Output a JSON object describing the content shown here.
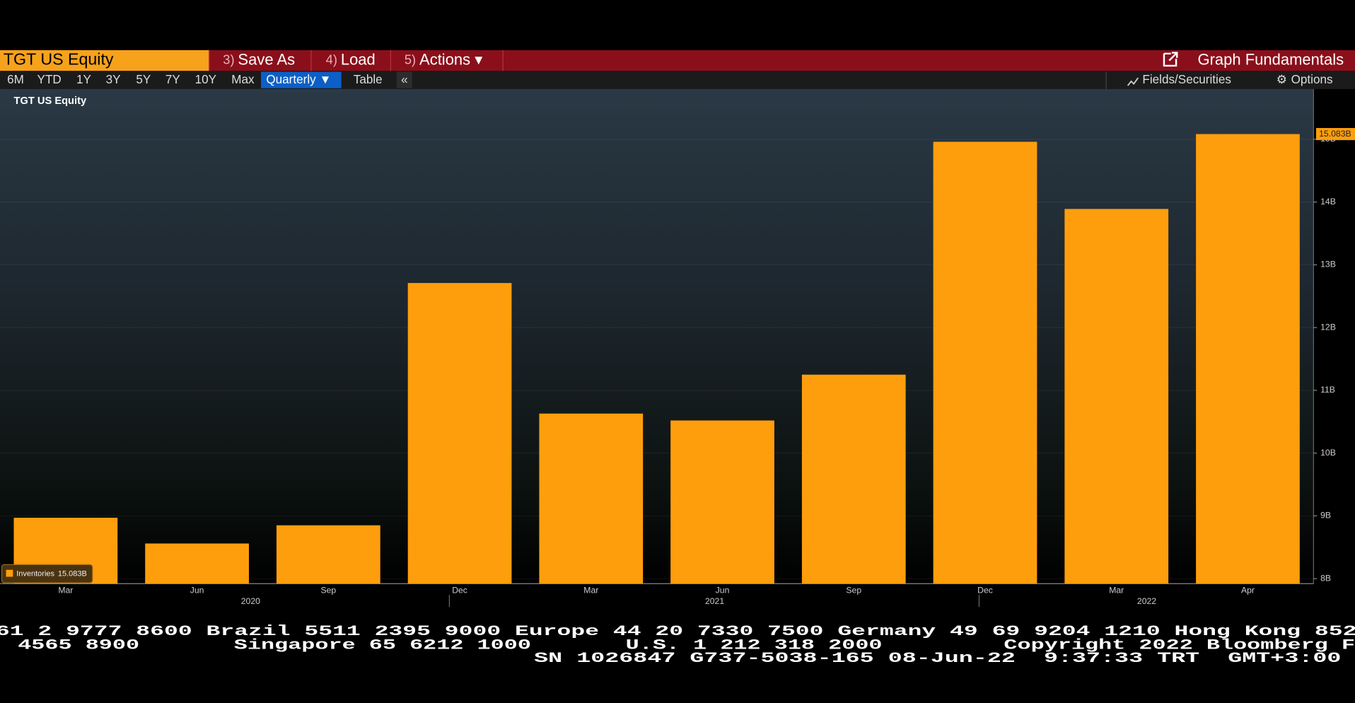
{
  "toolbar": {
    "security": "TGT US Equity",
    "menu": [
      {
        "key": "3)",
        "label": "Save As"
      },
      {
        "key": "4)",
        "label": "Load"
      },
      {
        "key": "5)",
        "label": "Actions ▾"
      }
    ],
    "function_title": "Graph Fundamentals",
    "periods": [
      "6M",
      "YTD",
      "1Y",
      "3Y",
      "5Y",
      "7Y",
      "10Y",
      "Max"
    ],
    "frequency": "Quarterly ▼",
    "table": "Table",
    "collapse": "«",
    "fields": "Fields/Securities",
    "options": "Options"
  },
  "chart_data": {
    "type": "bar",
    "title": "TGT US Equity",
    "categories": [
      "Mar",
      "Jun",
      "Sep",
      "Dec",
      "Mar",
      "Jun",
      "Sep",
      "Dec",
      "Mar",
      "Apr"
    ],
    "year_labels": [
      "2020",
      "2021",
      "2022"
    ],
    "series": [
      {
        "name": "Inventories",
        "color": "#ff9e0c",
        "values": [
          8.97,
          8.56,
          8.85,
          12.71,
          10.63,
          10.52,
          11.25,
          14.96,
          13.89,
          15.083
        ],
        "value_labels": [
          null,
          null,
          null,
          null,
          null,
          null,
          null,
          null,
          null,
          "15.083B"
        ]
      }
    ],
    "ylim": [
      7.92,
      15.8
    ],
    "yticks": [
      {
        "value": 8,
        "label": "8B"
      },
      {
        "value": 9,
        "label": "9B"
      },
      {
        "value": 10,
        "label": "10B"
      },
      {
        "value": 11,
        "label": "11B"
      },
      {
        "value": 12,
        "label": "12B"
      },
      {
        "value": 13,
        "label": "13B"
      },
      {
        "value": 14,
        "label": "14B"
      },
      {
        "value": 15,
        "label": "15B"
      }
    ],
    "grid": true,
    "legend": "bottom-left"
  },
  "footer": {
    "lines": [
      "61 2 9777 8600 Brazil 5511 2395 9000 Europe 44 20 7330 7500 Germany 49 69 9204 1210 Hong Kong 852",
      " 4565 8900       Singapore 65 6212 1000       U.S. 1 212 318 2000         Copyright 2022 Bloomberg F",
      "SN 1026847 G737-5038-165 08-Jun-22  9:37:33 TRT  GMT+3:00"
    ]
  }
}
